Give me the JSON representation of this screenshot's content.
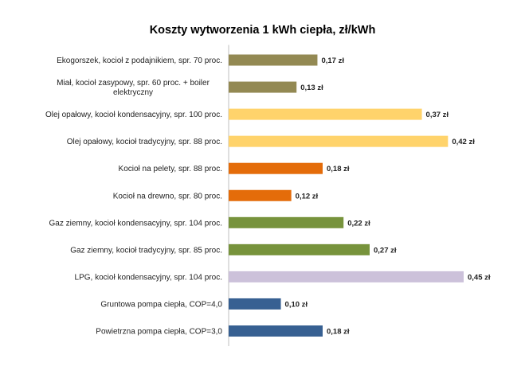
{
  "chart_data": {
    "type": "bar",
    "orientation": "horizontal",
    "title": "Koszty wytworzenia 1 kWh ciepła, zł/kWh",
    "xlabel": "",
    "ylabel": "",
    "xlim": [
      0,
      0.45
    ],
    "grid": false,
    "legend": "none",
    "value_suffix": " zł",
    "categories": [
      "Ekogorszek, kocioł z podajnikiem, spr. 70 proc.",
      "Miał, kocioł zasypowy, spr. 60 proc. + boiler elektryczny",
      "Olej opałowy, kocioł kondensacyjny, spr. 100 proc.",
      "Olej opałowy, kocioł tradycyjny, spr. 88 proc.",
      "Kocioł na pelety, spr. 88 proc.",
      "Kocioł na drewno, spr. 80 proc.",
      "Gaz ziemny, kocioł kondensacyjny, spr. 104 proc.",
      "Gaz ziemny, kocioł tradycyjny, spr. 85 proc.",
      "LPG, kocioł kondensacyjny, spr. 104 proc.",
      "Gruntowa pompa ciepła, COP=4,0",
      "Powietrzna pompa ciepła, COP=3,0"
    ],
    "label_lines": [
      [
        "Ekogorszek, kocioł z podajnikiem, spr. 70 proc."
      ],
      [
        "Miał, kocioł zasypowy, spr. 60 proc. + boiler",
        "elektryczny"
      ],
      [
        "Olej opałowy, kocioł kondensacyjny, spr. 100 proc."
      ],
      [
        "Olej opałowy, kocioł tradycyjny, spr. 88 proc."
      ],
      [
        "Kocioł na pelety, spr. 88 proc."
      ],
      [
        "Kocioł na drewno, spr. 80 proc."
      ],
      [
        "Gaz ziemny, kocioł kondensacyjny, spr. 104 proc."
      ],
      [
        "Gaz ziemny, kocioł tradycyjny, spr. 85 proc."
      ],
      [
        "LPG, kocioł kondensacyjny, spr. 104 proc."
      ],
      [
        "Gruntowa pompa ciepła, COP=4,0"
      ],
      [
        "Powietrzna pompa ciepła, COP=3,0"
      ]
    ],
    "values": [
      0.17,
      0.13,
      0.37,
      0.42,
      0.18,
      0.12,
      0.22,
      0.27,
      0.45,
      0.1,
      0.18
    ],
    "value_labels": [
      "0,17 zł",
      "0,13 zł",
      "0,37 zł",
      "0,42 zł",
      "0,18 zł",
      "0,12 zł",
      "0,22 zł",
      "0,27 zł",
      "0,45 zł",
      "0,10 zł",
      "0,18 zł"
    ],
    "colors": [
      "#938953",
      "#938953",
      "#FFD36B",
      "#FFD36B",
      "#E46C0A",
      "#E46C0A",
      "#77933C",
      "#77933C",
      "#CCC1DA",
      "#376092",
      "#376092"
    ]
  }
}
